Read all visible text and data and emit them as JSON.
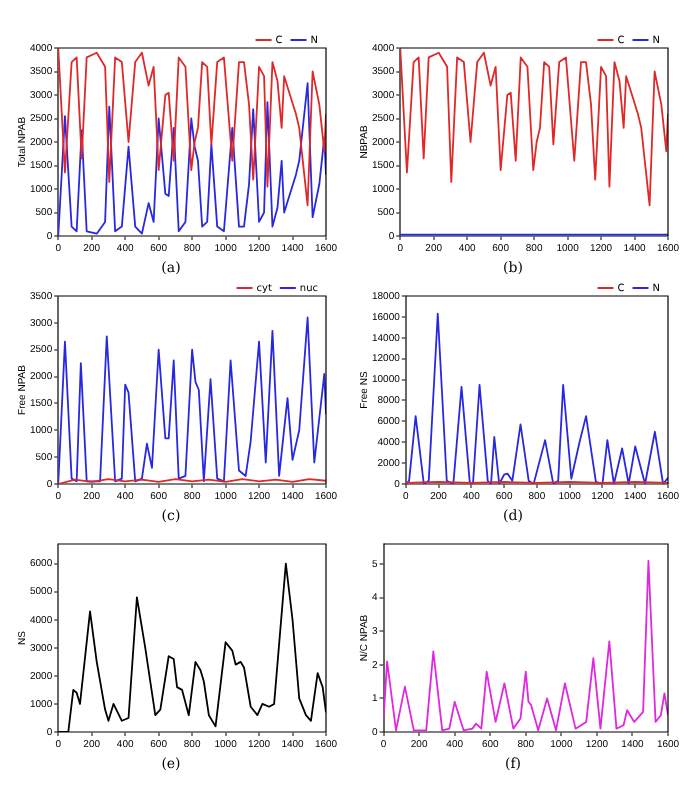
{
  "chart_data": [
    {
      "type": "line",
      "ylabel": "Total NPAB",
      "xlim": [
        0,
        1600
      ],
      "xticks": [
        0,
        200,
        400,
        600,
        800,
        1000,
        1200,
        1400,
        1600
      ],
      "ylim": [
        0,
        4000
      ],
      "yticks": [
        0,
        500,
        1000,
        1500,
        2000,
        2500,
        3000,
        3500,
        4000
      ],
      "legend": "top right",
      "annotations": [
        "(a)"
      ],
      "series": [
        {
          "name": "C",
          "color": "#e02828",
          "x": [
            0,
            40,
            80,
            110,
            140,
            170,
            230,
            280,
            305,
            340,
            380,
            420,
            460,
            500,
            540,
            570,
            600,
            640,
            660,
            690,
            720,
            760,
            795,
            815,
            835,
            860,
            890,
            915,
            950,
            990,
            1040,
            1080,
            1110,
            1140,
            1165,
            1200,
            1230,
            1250,
            1280,
            1310,
            1335,
            1350,
            1420,
            1440,
            1490,
            1520,
            1560,
            1590,
            1600
          ],
          "values": [
            4000,
            1350,
            3700,
            3800,
            1650,
            3800,
            3900,
            3600,
            1150,
            3800,
            3700,
            2000,
            3700,
            3900,
            3200,
            3600,
            1400,
            3000,
            3050,
            1600,
            3800,
            3600,
            1400,
            2000,
            2300,
            3700,
            3600,
            1950,
            3700,
            3800,
            1600,
            3700,
            3700,
            2800,
            1200,
            3600,
            3400,
            1050,
            3700,
            3300,
            2300,
            3400,
            2600,
            2300,
            650,
            3500,
            2800,
            1800,
            2600
          ]
        },
        {
          "name": "N",
          "color": "#2828e0",
          "x": [
            0,
            40,
            80,
            110,
            140,
            170,
            230,
            280,
            305,
            340,
            380,
            420,
            460,
            500,
            540,
            570,
            600,
            640,
            660,
            690,
            720,
            760,
            795,
            815,
            835,
            860,
            890,
            915,
            950,
            990,
            1040,
            1080,
            1110,
            1140,
            1165,
            1200,
            1230,
            1250,
            1280,
            1310,
            1335,
            1350,
            1420,
            1440,
            1490,
            1520,
            1560,
            1590,
            1600
          ],
          "values": [
            0,
            2550,
            200,
            100,
            2250,
            100,
            50,
            300,
            2750,
            100,
            200,
            1900,
            200,
            50,
            700,
            300,
            2500,
            900,
            850,
            2300,
            100,
            300,
            2500,
            1900,
            1600,
            200,
            300,
            1950,
            200,
            100,
            2300,
            200,
            200,
            1100,
            2700,
            300,
            500,
            2850,
            200,
            600,
            1600,
            500,
            1300,
            1600,
            3250,
            400,
            1100,
            2100,
            1300
          ]
        }
      ]
    },
    {
      "type": "line",
      "ylabel": "NBPAB",
      "xlim": [
        0,
        1600
      ],
      "xticks": [
        0,
        200,
        400,
        600,
        800,
        1000,
        1200,
        1400,
        1600
      ],
      "ylim": [
        0,
        4000
      ],
      "yticks": [
        0,
        500,
        1000,
        1500,
        2000,
        2500,
        3000,
        3500,
        4000
      ],
      "legend": "top right",
      "annotations": [
        "(b)"
      ],
      "series": [
        {
          "name": "C",
          "color": "#e02828",
          "x": [
            0,
            40,
            80,
            110,
            140,
            170,
            230,
            280,
            305,
            340,
            380,
            420,
            460,
            500,
            540,
            570,
            600,
            640,
            660,
            690,
            720,
            760,
            795,
            815,
            835,
            860,
            890,
            915,
            950,
            990,
            1040,
            1080,
            1110,
            1140,
            1165,
            1200,
            1230,
            1250,
            1280,
            1310,
            1335,
            1350,
            1420,
            1440,
            1490,
            1520,
            1560,
            1590,
            1600
          ],
          "values": [
            4000,
            1350,
            3700,
            3800,
            1650,
            3800,
            3900,
            3600,
            1150,
            3800,
            3700,
            2000,
            3700,
            3900,
            3200,
            3600,
            1400,
            3000,
            3050,
            1600,
            3800,
            3600,
            1400,
            2000,
            2300,
            3700,
            3600,
            1950,
            3700,
            3800,
            1600,
            3700,
            3700,
            2800,
            1200,
            3600,
            3400,
            1050,
            3700,
            3300,
            2300,
            3400,
            2600,
            2300,
            650,
            3500,
            2800,
            1800,
            2600
          ]
        },
        {
          "name": "N",
          "color": "#2828e0",
          "x": [
            0,
            400,
            800,
            1200,
            1600
          ],
          "values": [
            30,
            30,
            30,
            30,
            30
          ]
        }
      ]
    },
    {
      "type": "line",
      "ylabel": "Free NPAB",
      "xlim": [
        0,
        1600
      ],
      "xticks": [
        0,
        200,
        400,
        600,
        800,
        1000,
        1200,
        1400,
        1600
      ],
      "ylim": [
        0,
        3500
      ],
      "yticks": [
        0,
        500,
        1000,
        1500,
        2000,
        2500,
        3000,
        3500
      ],
      "legend": "top right",
      "annotations": [
        "(c)"
      ],
      "series": [
        {
          "name": "cyt",
          "color": "#e02828",
          "x": [
            0,
            100,
            200,
            300,
            400,
            500,
            600,
            700,
            800,
            900,
            1000,
            1100,
            1200,
            1300,
            1400,
            1500,
            1600
          ],
          "values": [
            0,
            80,
            40,
            90,
            50,
            80,
            40,
            90,
            50,
            80,
            40,
            90,
            50,
            80,
            40,
            90,
            60
          ]
        },
        {
          "name": "nuc",
          "color": "#2828e0",
          "x": [
            0,
            40,
            80,
            110,
            135,
            170,
            250,
            290,
            340,
            380,
            400,
            420,
            460,
            500,
            530,
            560,
            600,
            640,
            660,
            690,
            720,
            760,
            800,
            820,
            840,
            870,
            910,
            950,
            990,
            1030,
            1080,
            1120,
            1150,
            1200,
            1240,
            1280,
            1320,
            1370,
            1400,
            1440,
            1490,
            1530,
            1590,
            1600
          ],
          "values": [
            0,
            2650,
            100,
            50,
            2250,
            50,
            50,
            2750,
            50,
            100,
            1850,
            1700,
            50,
            100,
            750,
            300,
            2500,
            850,
            850,
            2300,
            100,
            150,
            2500,
            1900,
            1750,
            50,
            1950,
            100,
            50,
            2300,
            250,
            150,
            800,
            2650,
            400,
            2850,
            150,
            1600,
            450,
            1000,
            3100,
            400,
            2050,
            1300
          ]
        }
      ]
    },
    {
      "type": "line",
      "ylabel": "Free NS",
      "xlim": [
        0,
        1600
      ],
      "xticks": [
        0,
        200,
        400,
        600,
        800,
        1000,
        1200,
        1400,
        1600
      ],
      "ylim": [
        0,
        18000
      ],
      "yticks": [
        0,
        2000,
        4000,
        6000,
        8000,
        10000,
        12000,
        14000,
        16000,
        18000
      ],
      "legend": "top right",
      "annotations": [
        "(d)"
      ],
      "series": [
        {
          "name": "C",
          "color": "#e02828",
          "x": [
            0,
            200,
            400,
            600,
            800,
            1000,
            1200,
            1400,
            1600
          ],
          "values": [
            100,
            200,
            100,
            200,
            100,
            200,
            100,
            200,
            100
          ]
        },
        {
          "name": "N",
          "color": "#2828e0",
          "x": [
            0,
            20,
            60,
            110,
            140,
            195,
            250,
            290,
            340,
            390,
            410,
            450,
            500,
            520,
            540,
            570,
            600,
            620,
            650,
            700,
            750,
            780,
            850,
            900,
            930,
            960,
            1010,
            1060,
            1100,
            1160,
            1200,
            1230,
            1270,
            1320,
            1360,
            1400,
            1460,
            1520,
            1570,
            1600
          ],
          "values": [
            0,
            300,
            6500,
            0,
            300,
            16300,
            300,
            0,
            9300,
            200,
            0,
            9500,
            300,
            0,
            4500,
            0,
            900,
            1000,
            300,
            5700,
            300,
            0,
            4200,
            0,
            300,
            9500,
            500,
            4000,
            6500,
            200,
            0,
            4200,
            0,
            3400,
            0,
            3600,
            0,
            5000,
            0,
            600
          ]
        }
      ]
    },
    {
      "type": "line",
      "ylabel": "NS",
      "xlim": [
        0,
        1600
      ],
      "xticks": [
        0,
        200,
        400,
        600,
        800,
        1000,
        1200,
        1400,
        1600
      ],
      "ylim": [
        0,
        6700
      ],
      "yticks": [
        0,
        1000,
        2000,
        3000,
        4000,
        5000,
        6000
      ],
      "annotations": [
        "(e)"
      ],
      "series": [
        {
          "color": "#000000",
          "x": [
            0,
            60,
            90,
            110,
            130,
            190,
            230,
            280,
            300,
            330,
            380,
            420,
            470,
            520,
            580,
            610,
            660,
            690,
            710,
            740,
            780,
            820,
            850,
            870,
            900,
            940,
            1000,
            1040,
            1060,
            1090,
            1110,
            1150,
            1190,
            1220,
            1260,
            1290,
            1360,
            1400,
            1440,
            1480,
            1510,
            1550,
            1580,
            1600
          ],
          "values": [
            0,
            0,
            1500,
            1400,
            1000,
            4300,
            2500,
            800,
            400,
            1000,
            400,
            500,
            4800,
            3000,
            600,
            800,
            2700,
            2600,
            1600,
            1500,
            600,
            2500,
            2200,
            1800,
            600,
            200,
            3200,
            2900,
            2400,
            2500,
            2300,
            900,
            600,
            1000,
            900,
            1000,
            6000,
            4000,
            1200,
            600,
            400,
            2100,
            1600,
            700
          ]
        }
      ]
    },
    {
      "type": "line",
      "ylabel": "N/C NPAB",
      "xlim": [
        0,
        1600
      ],
      "xticks": [
        0,
        200,
        400,
        600,
        800,
        1000,
        1200,
        1400,
        1600
      ],
      "ylim": [
        0,
        5.6
      ],
      "yticks": [
        0,
        1,
        2,
        3,
        4,
        5
      ],
      "annotations": [
        "(f)"
      ],
      "series": [
        {
          "color": "#e028e0",
          "x": [
            0,
            20,
            70,
            120,
            170,
            240,
            280,
            330,
            370,
            400,
            450,
            500,
            520,
            550,
            580,
            630,
            680,
            730,
            770,
            800,
            815,
            830,
            870,
            920,
            970,
            1020,
            1080,
            1140,
            1180,
            1220,
            1270,
            1310,
            1350,
            1370,
            1410,
            1460,
            1490,
            1530,
            1560,
            1580,
            1600
          ],
          "values": [
            0.4,
            2.1,
            0.05,
            1.35,
            0.05,
            0.05,
            2.4,
            0.05,
            0.1,
            0.9,
            0.05,
            0.1,
            0.25,
            0.1,
            1.8,
            0.3,
            1.45,
            0.1,
            0.4,
            1.8,
            0.9,
            0.8,
            0.05,
            1.0,
            0.05,
            1.45,
            0.1,
            0.3,
            2.2,
            0.1,
            2.7,
            0.1,
            0.2,
            0.65,
            0.3,
            0.6,
            5.1,
            0.3,
            0.5,
            1.15,
            0.5
          ]
        }
      ]
    }
  ]
}
